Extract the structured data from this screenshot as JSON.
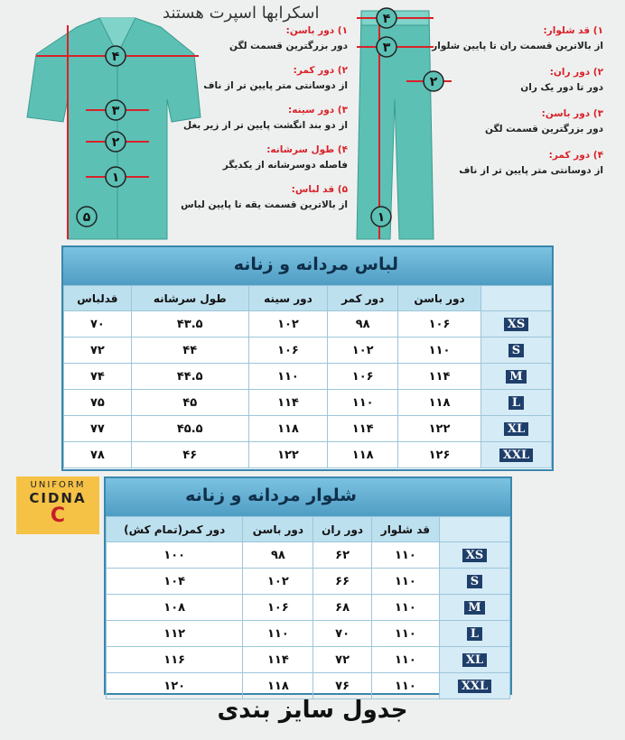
{
  "title": "اسکرابها اسپرت هستند",
  "shirt": {
    "markers": [
      "۴",
      "۳",
      "۲",
      "۱",
      "۵"
    ],
    "notes": [
      {
        "label": "۱) دور باسن:",
        "text": "دور بزرگترین قسمت لگن"
      },
      {
        "label": "۲) دور کمر:",
        "text": "از دوسانتی متر پایین تر از ناف"
      },
      {
        "label": "۳) دور سینه:",
        "text": "از دو بند انگشت پایین تر از زیر بغل"
      },
      {
        "label": "۴) طول سرشانه:",
        "text": "فاصله دوسرشانه از یکدیگر"
      },
      {
        "label": "۵) قد لباس:",
        "text": "از بالاترین قسمت یقه تا پایین لباس"
      }
    ]
  },
  "pants": {
    "markers": [
      "۴",
      "۳",
      "۲",
      "۱"
    ],
    "notes": [
      {
        "label": "۱) قد شلوار:",
        "text": "از بالاترین قسمت ران تا پایین شلوار"
      },
      {
        "label": "۲) دور ران:",
        "text": "دور تا دور یک ران"
      },
      {
        "label": "۳) دور باسن:",
        "text": "دور بزرگترین قسمت لگن"
      },
      {
        "label": "۴) دور کمر:",
        "text": "از دوسانتی متر پایین تر از ناف"
      }
    ]
  },
  "shirt_table": {
    "title": "لباس مردانه و زنانه",
    "columns": [
      "دور باسن",
      "دور کمر",
      "دور سینه",
      "طول سرشانه",
      "قدلباس"
    ],
    "rows": [
      {
        "size": "XS",
        "values": [
          "۱۰۶",
          "۹۸",
          "۱۰۲",
          "۴۳.۵",
          "۷۰"
        ]
      },
      {
        "size": "S",
        "values": [
          "۱۱۰",
          "۱۰۲",
          "۱۰۶",
          "۴۴",
          "۷۲"
        ]
      },
      {
        "size": "M",
        "values": [
          "۱۱۴",
          "۱۰۶",
          "۱۱۰",
          "۴۴.۵",
          "۷۴"
        ]
      },
      {
        "size": "L",
        "values": [
          "۱۱۸",
          "۱۱۰",
          "۱۱۴",
          "۴۵",
          "۷۵"
        ]
      },
      {
        "size": "XL",
        "values": [
          "۱۲۲",
          "۱۱۴",
          "۱۱۸",
          "۴۵.۵",
          "۷۷"
        ]
      },
      {
        "size": "XXL",
        "values": [
          "۱۲۶",
          "۱۱۸",
          "۱۲۲",
          "۴۶",
          "۷۸"
        ]
      }
    ]
  },
  "logo": {
    "top": "UNIFORM",
    "name": "CIDNA",
    "mark": "C"
  },
  "pants_table": {
    "title": "شلوار مردانه و زنانه",
    "columns": [
      "قد شلوار",
      "دور ران",
      "دور باسن",
      "دور کمر(تمام کش)"
    ],
    "rows": [
      {
        "size": "XS",
        "values": [
          "۱۱۰",
          "۶۲",
          "۹۸",
          "۱۰۰"
        ]
      },
      {
        "size": "S",
        "values": [
          "۱۱۰",
          "۶۶",
          "۱۰۲",
          "۱۰۴"
        ]
      },
      {
        "size": "M",
        "values": [
          "۱۱۰",
          "۶۸",
          "۱۰۶",
          "۱۰۸"
        ]
      },
      {
        "size": "L",
        "values": [
          "۱۱۰",
          "۷۰",
          "۱۱۰",
          "۱۱۲"
        ]
      },
      {
        "size": "XL",
        "values": [
          "۱۱۰",
          "۷۲",
          "۱۱۴",
          "۱۱۶"
        ]
      },
      {
        "size": "XXL",
        "values": [
          "۱۱۰",
          "۷۶",
          "۱۱۸",
          "۱۲۰"
        ]
      }
    ]
  },
  "footer": "جدول سایز بندی"
}
